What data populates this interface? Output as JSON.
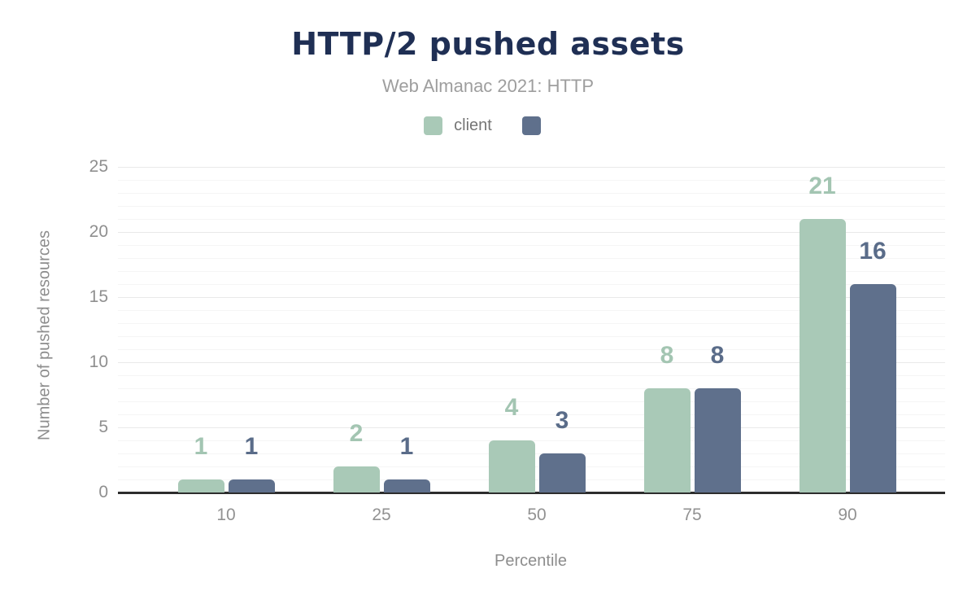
{
  "chart_data": {
    "type": "bar",
    "title": "HTTP/2 pushed assets",
    "subtitle": "Web Almanac 2021: HTTP",
    "xlabel": "Percentile",
    "ylabel": "Number of pushed resources",
    "categories": [
      "10",
      "25",
      "50",
      "75",
      "90"
    ],
    "series": [
      {
        "name": "client",
        "color": "#a9c9b7",
        "label_color": "#a3c5b2",
        "values": [
          1,
          2,
          4,
          8,
          21
        ]
      },
      {
        "name": "",
        "color": "#5f708c",
        "label_color": "#5a6c89",
        "values": [
          1,
          1,
          3,
          8,
          16
        ]
      }
    ],
    "y_ticks": [
      0,
      5,
      10,
      15,
      20,
      25
    ],
    "ylim": [
      0,
      25
    ],
    "grid": {
      "orientation": "horizontal",
      "major_every": 5,
      "minor_every": 1
    },
    "legend_position": "top",
    "legend": [
      {
        "label": "client",
        "color": "#a9c9b7"
      },
      {
        "label": "",
        "color": "#5f708c"
      }
    ]
  },
  "colors": {
    "title": "#1f2f54",
    "subtitle": "#9e9e9e",
    "axis_text": "#8d8d8d",
    "tick_text": "#929292",
    "axis_line": "#2d2d2d",
    "grid_major": "#e9e9e9",
    "grid_minor": "#f5f5f5"
  }
}
